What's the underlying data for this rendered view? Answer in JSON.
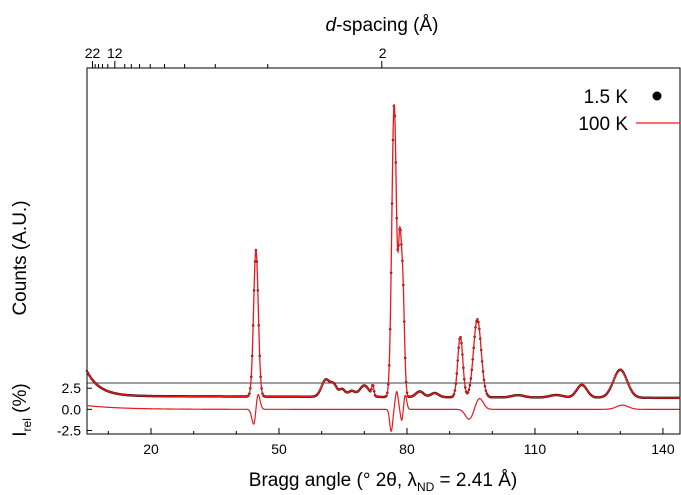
{
  "chart_data": {
    "type": "line",
    "top_axis": {
      "label_italic": "d",
      "label_rest": "-spacing (Å)",
      "tick_labels": [
        {
          "text": "22",
          "at_two_theta": 6.3
        },
        {
          "text": "12",
          "at_two_theta": 11.5
        },
        {
          "text": "2",
          "at_two_theta": 74.3
        }
      ]
    },
    "xaxis": {
      "label": "Bragg angle (° 2θ, λ",
      "label_sub": "ND",
      "label_tail": " = 2.41 Å)",
      "range": [
        5,
        144
      ],
      "ticks": [
        20,
        50,
        80,
        110,
        140
      ]
    },
    "yaxis_main": {
      "label": "Counts (A.U.)",
      "range": [
        0,
        100
      ]
    },
    "yaxis_diff": {
      "label": "I",
      "label_sub": "rel",
      "label_tail": " (%)",
      "range": [
        -2.8,
        3.0
      ],
      "ticks": [
        2.5,
        0.0,
        -2.5
      ],
      "tick_labels": [
        "2.5",
        "0.0",
        "-2.5"
      ]
    },
    "legend": {
      "position": "top-right",
      "entries": [
        {
          "name": "1.5 K",
          "marker": "dot",
          "color": "#000000"
        },
        {
          "name": "100 K",
          "marker": "line",
          "color": "#e8191b"
        }
      ]
    },
    "peaks": [
      {
        "center": 44.6,
        "height": 46.0,
        "width": 0.55
      },
      {
        "center": 61.0,
        "height": 5.4,
        "width": 1.0
      },
      {
        "center": 62.9,
        "height": 3.3,
        "width": 0.7
      },
      {
        "center": 64.8,
        "height": 2.4,
        "width": 0.7
      },
      {
        "center": 67.0,
        "height": 1.8,
        "width": 0.8
      },
      {
        "center": 70.0,
        "height": 3.6,
        "width": 1.1
      },
      {
        "center": 72.0,
        "height": 3.2,
        "width": 0.25
      },
      {
        "center": 77.0,
        "height": 92.0,
        "width": 0.55
      },
      {
        "center": 78.3,
        "height": 40.0,
        "width": 0.35
      },
      {
        "center": 79.0,
        "height": 35.0,
        "width": 0.4
      },
      {
        "center": 83.0,
        "height": 1.8,
        "width": 0.9
      },
      {
        "center": 86.5,
        "height": 1.3,
        "width": 0.9
      },
      {
        "center": 92.5,
        "height": 19.0,
        "width": 0.6
      },
      {
        "center": 96.5,
        "height": 24.5,
        "width": 0.9
      },
      {
        "center": 106.0,
        "height": 0.7,
        "width": 1.4
      },
      {
        "center": 115.0,
        "height": 0.8,
        "width": 1.5
      },
      {
        "center": 121.0,
        "height": 4.0,
        "width": 1.2
      },
      {
        "center": 130.0,
        "height": 8.8,
        "width": 1.6
      }
    ],
    "baseline": {
      "level": 0.0,
      "low_angle_rise": 7.8,
      "decay_deg": 3.0,
      "tail_drop": 0.6
    },
    "diff_features": [
      {
        "center": 44.6,
        "amp": 1.8,
        "shape": "derivative",
        "width": 0.55
      },
      {
        "center": 76.3,
        "amp": -2.6,
        "shape": "spike",
        "width": 0.35
      },
      {
        "center": 77.6,
        "amp": 2.1,
        "shape": "spike",
        "width": 0.35
      },
      {
        "center": 78.8,
        "amp": -1.4,
        "shape": "spike",
        "width": 0.3
      },
      {
        "center": 79.6,
        "amp": 1.7,
        "shape": "spike",
        "width": 0.35
      },
      {
        "center": 94.6,
        "amp": -1.2,
        "shape": "spike",
        "width": 0.9
      },
      {
        "center": 97.0,
        "amp": 1.3,
        "shape": "spike",
        "width": 0.9
      },
      {
        "center": 130.5,
        "amp": 0.5,
        "shape": "spike",
        "width": 1.4
      }
    ],
    "diff_baseline": {
      "start": 0.45,
      "decay_deg": 8.0
    }
  }
}
